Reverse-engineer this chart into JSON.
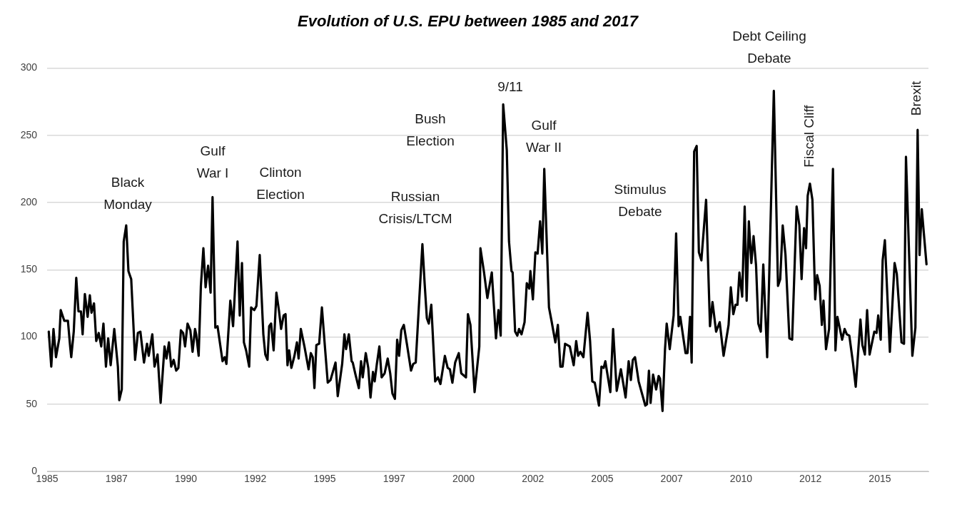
{
  "chart_data": {
    "type": "line",
    "title": "Evolution of U.S. EPU between 1985 and 2017",
    "xlim": [
      1985,
      2016.75
    ],
    "xticks": [
      1985,
      {
        "value": 1987.5,
        "label": "1987"
      },
      1990,
      {
        "value": 1992.5,
        "label": "1992"
      },
      1995,
      {
        "value": 1997.5,
        "label": "1997"
      },
      2000,
      {
        "value": 2002.5,
        "label": "2002"
      },
      2005,
      {
        "value": 2007.5,
        "label": "2007"
      },
      2010,
      {
        "value": 2012.5,
        "label": "2012"
      },
      2015
    ],
    "ylim": [
      0,
      300
    ],
    "yticks": [
      0,
      50,
      100,
      150,
      200,
      250,
      300
    ],
    "grid": "y",
    "legend": false,
    "marker": "none",
    "line_style": "solid",
    "annotations": [
      "Black\nMonday",
      "Gulf\nWar I",
      "Clinton\nElection",
      "Russian\nCrisis/LTCM",
      "Bush\nElection",
      "9/11",
      "Gulf\nWar II",
      "Stimulus\nDebate",
      "Debt Ceiling\nDebate",
      "Fiscal Cliff",
      "Brexit"
    ],
    "series": [
      {
        "color": "#000000",
        "x": [
          1985.06,
          1985.15,
          1985.23,
          1985.32,
          1985.44,
          1985.49,
          1985.62,
          1985.75,
          1985.83,
          1985.87,
          1985.96,
          1986.05,
          1986.13,
          1986.22,
          1986.28,
          1986.36,
          1986.46,
          1986.54,
          1986.6,
          1986.69,
          1986.77,
          1986.86,
          1986.95,
          1987.03,
          1987.12,
          1987.2,
          1987.29,
          1987.42,
          1987.55,
          1987.6,
          1987.69,
          1987.76,
          1987.85,
          1987.93,
          1988.03,
          1988.17,
          1988.27,
          1988.36,
          1988.49,
          1988.6,
          1988.66,
          1988.79,
          1988.87,
          1988.98,
          1989.09,
          1989.23,
          1989.3,
          1989.39,
          1989.47,
          1989.56,
          1989.65,
          1989.73,
          1989.82,
          1989.9,
          1989.97,
          1990.06,
          1990.16,
          1990.24,
          1990.33,
          1990.37,
          1990.46,
          1990.54,
          1990.63,
          1990.71,
          1990.8,
          1990.89,
          1990.96,
          1991.06,
          1991.14,
          1991.32,
          1991.4,
          1991.46,
          1991.6,
          1991.7,
          1991.86,
          1991.94,
          1992.02,
          1992.09,
          1992.17,
          1992.28,
          1992.35,
          1992.46,
          1992.54,
          1992.66,
          1992.79,
          1992.86,
          1992.94,
          1993,
          1993.07,
          1993.16,
          1993.26,
          1993.35,
          1993.43,
          1993.52,
          1993.59,
          1993.66,
          1993.72,
          1993.8,
          1993.91,
          1994,
          1994.06,
          1994.14,
          1994.27,
          1994.42,
          1994.5,
          1994.57,
          1994.63,
          1994.7,
          1994.8,
          1994.9,
          1995,
          1995.11,
          1995.21,
          1995.39,
          1995.47,
          1995.63,
          1995.71,
          1995.77,
          1995.87,
          1995.97,
          1996.01,
          1996.11,
          1996.23,
          1996.31,
          1996.37,
          1996.48,
          1996.57,
          1996.65,
          1996.74,
          1996.8,
          1996.88,
          1996.97,
          1997.05,
          1997.16,
          1997.27,
          1997.36,
          1997.44,
          1997.53,
          1997.61,
          1997.68,
          1997.76,
          1997.85,
          1997.96,
          1998.11,
          1998.19,
          1998.28,
          1998.41,
          1998.52,
          1998.6,
          1998.68,
          1998.75,
          1998.84,
          1998.98,
          1999.08,
          1999.17,
          1999.33,
          1999.43,
          1999.51,
          1999.6,
          1999.7,
          1999.83,
          1999.92,
          2000.09,
          2000.16,
          2000.25,
          2000.4,
          2000.57,
          2000.61,
          2000.74,
          2000.86,
          2001.02,
          2001.17,
          2001.26,
          2001.34,
          2001.43,
          2001.56,
          2001.64,
          2001.73,
          2001.77,
          2001.86,
          2001.94,
          2002,
          2002.09,
          2002.2,
          2002.28,
          2002.37,
          2002.41,
          2002.5,
          2002.59,
          2002.67,
          2002.76,
          2002.84,
          2002.91,
          2003.08,
          2003.18,
          2003.31,
          2003.4,
          2003.49,
          2003.57,
          2003.66,
          2003.83,
          2003.97,
          2004.06,
          2004.13,
          2004.21,
          2004.32,
          2004.47,
          2004.56,
          2004.64,
          2004.73,
          2004.88,
          2004.97,
          2005.05,
          2005.11,
          2005.29,
          2005.39,
          2005.52,
          2005.67,
          2005.84,
          2005.95,
          2006.03,
          2006.1,
          2006.18,
          2006.31,
          2006.55,
          2006.61,
          2006.68,
          2006.74,
          2006.83,
          2006.94,
          2007.03,
          2007.08,
          2007.17,
          2007.26,
          2007.32,
          2007.43,
          2007.57,
          2007.66,
          2007.75,
          2007.81,
          2008,
          2008.07,
          2008.16,
          2008.22,
          2008.31,
          2008.4,
          2008.48,
          2008.57,
          2008.74,
          2008.88,
          2008.97,
          2009.1,
          2009.23,
          2009.37,
          2009.55,
          2009.63,
          2009.72,
          2009.8,
          2009.87,
          2009.94,
          2010.04,
          2010.13,
          2010.2,
          2010.28,
          2010.37,
          2010.45,
          2010.54,
          2010.62,
          2010.71,
          2010.8,
          2010.94,
          2011.18,
          2011.33,
          2011.41,
          2011.5,
          2011.6,
          2011.74,
          2011.84,
          2012,
          2012.1,
          2012.18,
          2012.27,
          2012.34,
          2012.4,
          2012.48,
          2012.57,
          2012.67,
          2012.74,
          2012.83,
          2012.91,
          2012.97,
          2013.06,
          2013.17,
          2013.31,
          2013.4,
          2013.47,
          2013.56,
          2013.64,
          2013.73,
          2013.81,
          2013.9,
          2014.03,
          2014.13,
          2014.3,
          2014.37,
          2014.46,
          2014.54,
          2014.63,
          2014.8,
          2014.88,
          2014.94,
          2015.03,
          2015.1,
          2015.18,
          2015.36,
          2015.53,
          2015.61,
          2015.78,
          2015.87,
          2015.94,
          2016.17,
          2016.28,
          2016.36,
          2016.43,
          2016.51,
          2016.68
        ],
        "values": [
          104,
          78,
          106,
          85,
          99,
          120,
          112,
          112,
          93,
          85,
          104,
          144,
          119,
          119,
          102,
          132,
          115,
          131,
          118,
          125,
          97,
          103,
          93,
          110,
          78,
          99,
          79,
          106,
          78,
          53,
          61,
          171,
          183,
          149,
          143,
          83,
          103,
          104,
          81,
          95,
          86,
          102,
          78,
          87,
          51,
          93,
          84,
          96,
          78,
          83,
          75,
          77,
          105,
          103,
          93,
          110,
          105,
          89,
          106,
          102,
          86,
          138,
          166,
          137,
          153,
          133,
          204,
          107,
          108,
          82,
          85,
          80,
          127,
          108,
          171,
          116,
          155,
          96,
          90,
          78,
          122,
          120,
          123,
          161,
          102,
          87,
          83,
          108,
          110,
          90,
          133,
          120,
          106,
          116,
          117,
          79,
          90,
          77,
          86,
          96,
          84,
          106,
          93,
          76,
          88,
          85,
          62,
          94,
          95,
          122,
          95,
          66,
          68,
          81,
          56,
          80,
          102,
          91,
          102,
          82,
          81,
          72,
          62,
          82,
          70,
          88,
          77,
          55,
          74,
          67,
          80,
          93,
          70,
          73,
          84,
          73,
          58,
          54,
          98,
          86,
          105,
          109,
          95,
          75,
          80,
          81,
          129,
          169,
          140,
          114,
          110,
          124,
          67,
          70,
          65,
          86,
          77,
          76,
          66,
          81,
          88,
          73,
          70,
          117,
          109,
          59,
          93,
          166,
          148,
          129,
          148,
          99,
          120,
          101,
          273,
          239,
          171,
          149,
          148,
          104,
          101,
          106,
          102,
          111,
          140,
          136,
          149,
          128,
          163,
          162,
          186,
          162,
          225,
          122,
          111,
          96,
          109,
          78,
          78,
          95,
          93,
          79,
          97,
          86,
          89,
          85,
          118,
          97,
          67,
          66,
          49,
          78,
          77,
          82,
          59,
          106,
          60,
          76,
          55,
          82,
          68,
          83,
          85,
          67,
          49,
          50,
          75,
          51,
          72,
          61,
          71,
          69,
          45,
          91,
          110,
          91,
          116,
          177,
          108,
          115,
          88,
          88,
          115,
          81,
          238,
          242,
          163,
          157,
          202,
          108,
          126,
          104,
          111,
          86,
          109,
          137,
          117,
          124,
          124,
          148,
          130,
          197,
          127,
          186,
          155,
          175,
          153,
          110,
          104,
          154,
          85,
          283,
          138,
          143,
          183,
          161,
          99,
          98,
          197,
          183,
          143,
          181,
          166,
          205,
          214,
          202,
          128,
          146,
          138,
          109,
          127,
          91,
          106,
          225,
          90,
          115,
          106,
          98,
          106,
          102,
          101,
          81,
          63,
          113,
          94,
          87,
          120,
          87,
          104,
          103,
          116,
          98,
          157,
          172,
          89,
          155,
          147,
          96,
          95,
          234,
          86,
          107,
          254,
          161,
          195,
          154
        ]
      }
    ]
  }
}
